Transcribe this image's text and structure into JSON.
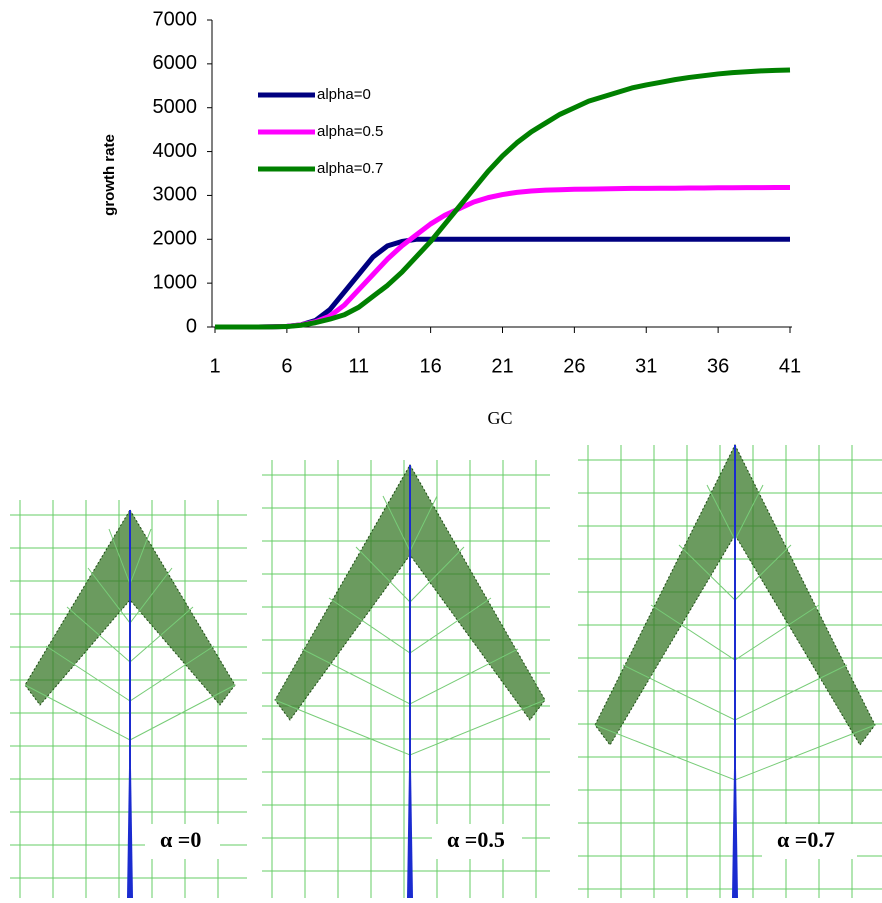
{
  "chart_data": {
    "type": "line",
    "x_label": "GC",
    "y_label": "growth rate",
    "x": [
      1,
      2,
      3,
      4,
      5,
      6,
      7,
      8,
      9,
      10,
      11,
      12,
      13,
      14,
      15,
      16,
      17,
      18,
      19,
      20,
      21,
      22,
      23,
      24,
      25,
      26,
      27,
      28,
      29,
      30,
      31,
      32,
      33,
      34,
      35,
      36,
      37,
      38,
      39,
      40,
      41
    ],
    "xlim": [
      1,
      41
    ],
    "xticks": [
      1,
      6,
      11,
      16,
      21,
      26,
      31,
      36,
      41
    ],
    "ylim": [
      0,
      7000
    ],
    "yticks": [
      0,
      1000,
      2000,
      3000,
      4000,
      5000,
      6000,
      7000
    ],
    "series": [
      {
        "name": "alpha=0",
        "color": "#000080",
        "values": [
          0,
          0,
          0,
          0,
          5,
          15,
          50,
          150,
          400,
          800,
          1200,
          1600,
          1850,
          1950,
          2000,
          2000,
          2000,
          2000,
          2000,
          2000,
          2000,
          2000,
          2000,
          2000,
          2000,
          2000,
          2000,
          2000,
          2000,
          2000,
          2000,
          2000,
          2000,
          2000,
          2000,
          2000,
          2000,
          2000,
          2000,
          2000,
          2000
        ]
      },
      {
        "name": "alpha=0.5",
        "color": "#ff00ff",
        "values": [
          0,
          0,
          0,
          0,
          5,
          15,
          50,
          120,
          250,
          500,
          850,
          1200,
          1550,
          1850,
          2100,
          2350,
          2550,
          2700,
          2850,
          2950,
          3020,
          3070,
          3100,
          3120,
          3130,
          3140,
          3145,
          3150,
          3155,
          3160,
          3160,
          3165,
          3165,
          3170,
          3170,
          3175,
          3175,
          3178,
          3178,
          3180,
          3180
        ]
      },
      {
        "name": "alpha=0.7",
        "color": "#008000",
        "values": [
          0,
          0,
          0,
          0,
          3,
          10,
          40,
          100,
          180,
          280,
          450,
          700,
          950,
          1250,
          1600,
          1950,
          2350,
          2750,
          3150,
          3550,
          3900,
          4200,
          4450,
          4650,
          4850,
          5000,
          5150,
          5250,
          5350,
          5450,
          5520,
          5580,
          5640,
          5690,
          5730,
          5770,
          5800,
          5820,
          5840,
          5850,
          5860
        ]
      }
    ]
  },
  "panels": [
    {
      "label": "α =0"
    },
    {
      "label": "α =0.5"
    },
    {
      "label": "α =0.7"
    }
  ]
}
